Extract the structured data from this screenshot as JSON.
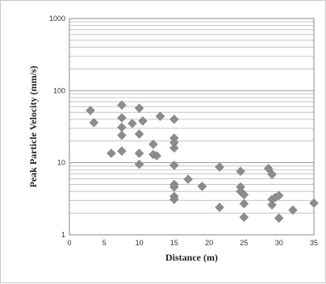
{
  "chart_data": {
    "type": "scatter",
    "title": "",
    "xlabel": "Distance (m)",
    "ylabel": "Peak Particle Velocity (mm/s)",
    "xlim": [
      0,
      35
    ],
    "ylim": [
      1,
      1000
    ],
    "y_scale": "log",
    "x_ticks": [
      0,
      5,
      10,
      15,
      20,
      25,
      30,
      35
    ],
    "x_tick_labels": [
      "0",
      "5",
      "10",
      "15",
      "20",
      "25",
      "30",
      "35"
    ],
    "y_ticks": [
      1,
      10,
      100,
      1000
    ],
    "y_tick_labels": [
      "1",
      "10",
      "100",
      "1000"
    ],
    "grid": "horizontal log gridlines",
    "legend": "none",
    "marker": "diamond",
    "marker_color": "#8c8c8c",
    "series": [
      {
        "points": [
          [
            3.0,
            53
          ],
          [
            3.5,
            36
          ],
          [
            6.0,
            13.5
          ],
          [
            7.5,
            63
          ],
          [
            7.5,
            42
          ],
          [
            7.5,
            31
          ],
          [
            7.5,
            24
          ],
          [
            7.5,
            14.5
          ],
          [
            9.0,
            35
          ],
          [
            10.0,
            57
          ],
          [
            10.0,
            25
          ],
          [
            10.0,
            13.5
          ],
          [
            10.0,
            9.5
          ],
          [
            10.5,
            38
          ],
          [
            12.0,
            18
          ],
          [
            12.0,
            13
          ],
          [
            12.5,
            12.5
          ],
          [
            13.0,
            44
          ],
          [
            15.0,
            40
          ],
          [
            15.0,
            22
          ],
          [
            15.0,
            19
          ],
          [
            15.0,
            16
          ],
          [
            15.0,
            9.2
          ],
          [
            15.0,
            5.0
          ],
          [
            15.0,
            4.6
          ],
          [
            15.0,
            3.4
          ],
          [
            15.0,
            3.1
          ],
          [
            17.0,
            5.9
          ],
          [
            19.0,
            4.7
          ],
          [
            21.5,
            8.7
          ],
          [
            21.5,
            2.4
          ],
          [
            24.5,
            7.6
          ],
          [
            24.5,
            4.6
          ],
          [
            24.5,
            4.0
          ],
          [
            25.0,
            3.6
          ],
          [
            25.0,
            2.7
          ],
          [
            25.0,
            1.75
          ],
          [
            28.5,
            8.3
          ],
          [
            29.0,
            6.9
          ],
          [
            29.0,
            3.1
          ],
          [
            29.0,
            2.6
          ],
          [
            29.5,
            3.3
          ],
          [
            30.0,
            3.5
          ],
          [
            30.0,
            1.7
          ],
          [
            32.0,
            2.2
          ],
          [
            35.0,
            2.75
          ]
        ]
      }
    ]
  }
}
